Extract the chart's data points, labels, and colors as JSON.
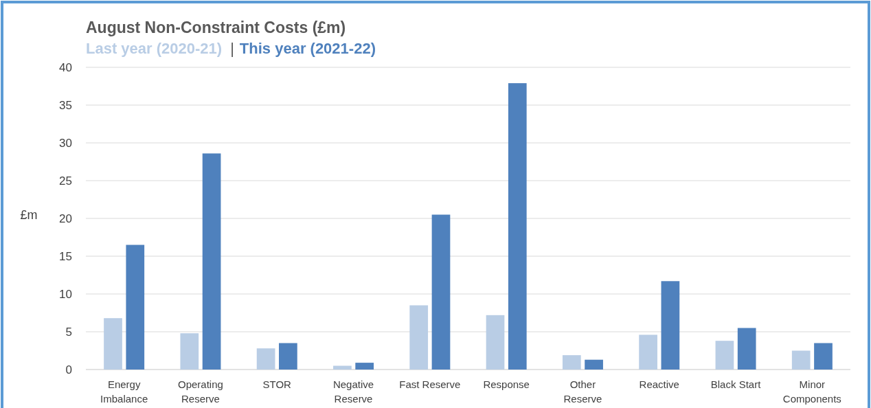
{
  "chart_data": {
    "type": "bar",
    "title": "August Non-Constraint Costs (£m)",
    "ylabel": "£m",
    "categories": [
      "Energy Imbalance",
      "Operating Reserve",
      "STOR",
      "Negative Reserve",
      "Fast Reserve",
      "Response",
      "Other Reserve",
      "Reactive",
      "Black Start",
      "Minor Components"
    ],
    "series": [
      {
        "name": "Last year (2020-21)",
        "color": "#b9cde5",
        "values": [
          6.8,
          4.8,
          2.8,
          0.5,
          8.5,
          7.2,
          1.9,
          4.6,
          3.8,
          2.5
        ]
      },
      {
        "name": "This year (2021-22)",
        "color": "#4f81bd",
        "values": [
          16.5,
          28.6,
          3.5,
          0.9,
          20.5,
          37.9,
          1.3,
          11.7,
          5.5,
          3.5
        ]
      }
    ],
    "ylim": [
      0,
      40
    ],
    "yticks": [
      0,
      5,
      10,
      15,
      20,
      25,
      30,
      35,
      40
    ],
    "grid": "y",
    "legend": "top left",
    "annotations": [
      "|"
    ]
  }
}
